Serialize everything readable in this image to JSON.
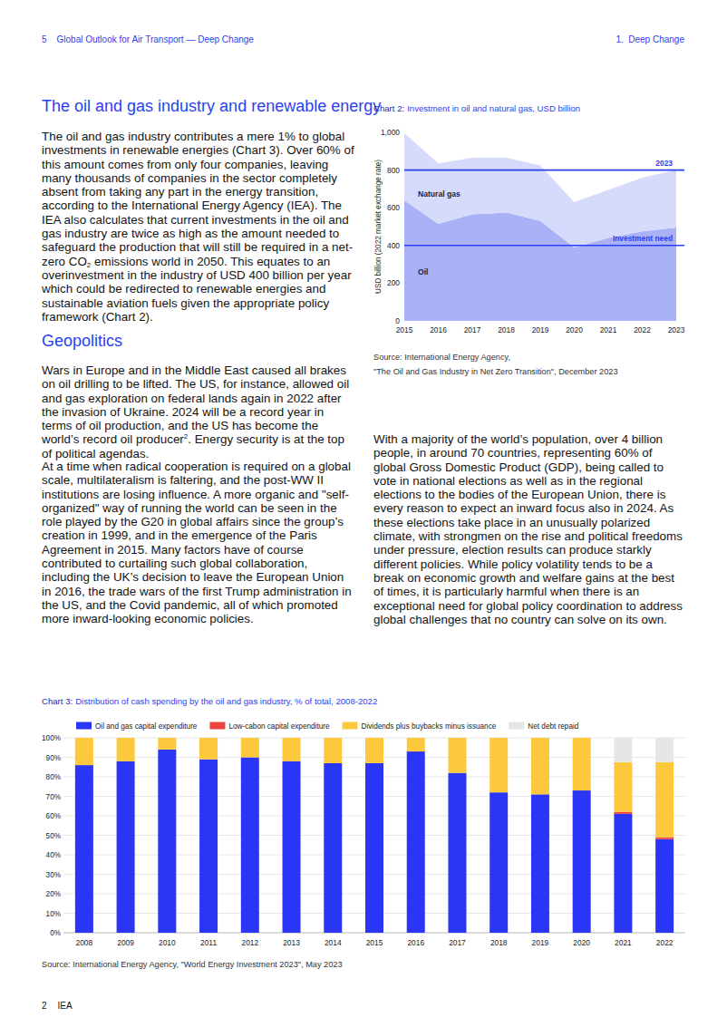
{
  "header": {
    "page": "5",
    "title": "Global Outlook for Air Transport — Deep Change",
    "section": "1.  Deep Change"
  },
  "sections": [
    {
      "heading": "The oil and gas industry and renewable energy",
      "paragraphs": [
        [
          "The oil and gas industry contributes a mere 1% to global investments in renewable energies (Chart 3). Over 60% of this amount comes from only four companies, leaving many thousands of companies in the sector completely absent from taking any part in the energy transition, according to the International Energy Agency (IEA). The IEA also calculates that current investments in the oil and gas industry are twice as high as the amount needed to safeguard the production that will still be required in a net-zero CO",
          {
            "sub": "2"
          },
          " emissions world in 2050. This equates to an overinvestment in the industry of USD 400 billion per year which could be redirected to renewable energies and sustainable aviation fuels given the appropriate policy framework (Chart 2)."
        ]
      ]
    },
    {
      "heading": "Geopolitics",
      "paragraphs": [
        [
          "Wars in Europe and in the Middle East caused all brakes on oil drilling to be lifted. The US, for instance, allowed oil and gas exploration on federal lands again in 2022 after the invasion of Ukraine. 2024 will be a record year in terms of oil production, and the US has become the world’s record oil producer",
          {
            "sup": "2"
          },
          ". Energy security is at the top of political agendas."
        ],
        [
          "At a time when radical cooperation is required on a global scale, multilateralism is faltering, and the post-WW II institutions are losing influence. A more organic and \"self-organized\" way of running the world can be seen in the role played by the G20 in global affairs since the group’s creation in 1999, and in the emergence of the Paris Agreement in 2015. Many factors have of course contributed to curtailing such global collaboration, including the UK’s decision to leave the European Union in 2016, the trade wars of the first Trump administration in the US, and the Covid pandemic, all of which promoted more inward-looking economic policies."
        ],
        [
          "With a majority of the world’s population, over 4 billion people, in around 70 countries, representing 60% of global Gross Domestic Product (GDP), being called to vote in national elections as well as in the regional elections to the bodies of the European Union, there is every reason to expect an inward focus also in 2024. As these elections take place in an unusually polarized climate, with strongmen on the rise and political freedoms under pressure, election results can produce starkly different policies. While policy volatility tends to be a break on economic growth and welfare gains at the best of times, it is particularly harmful when there is an exceptional need for global policy coordination to address global challenges that no country can solve on its own."
        ]
      ]
    }
  ],
  "footer": {
    "page": "2",
    "source": "IEA"
  },
  "chart_data": [
    {
      "type": "area",
      "stacked": true,
      "number": "Chart 2:",
      "title": "Investment in oil and natural gas, USD billion",
      "y_label": "USD billion (2022 market exchange rate)",
      "x": [
        2015,
        2016,
        2017,
        2018,
        2019,
        2020,
        2021,
        2022,
        2023
      ],
      "xlim": [
        2015,
        2023
      ],
      "xticks": [
        2015,
        2016,
        2017,
        2018,
        2019,
        2020,
        2021,
        2022,
        2023
      ],
      "ylim": [
        0,
        1000
      ],
      "yticks": [
        0,
        200,
        400,
        600,
        800,
        {
          "value": 1000,
          "label": "1,000"
        }
      ],
      "series": [
        {
          "name": "Oil",
          "color": "#a9b2f6",
          "values": [
            640,
            515,
            565,
            575,
            530,
            390,
            440,
            475,
            495
          ]
        },
        {
          "name": "Natural gas",
          "color": "#d6dafb",
          "values": [
            355,
            320,
            300,
            290,
            295,
            240,
            255,
            285,
            305
          ]
        }
      ],
      "reference_lines": [
        {
          "value": 800,
          "label": "2023"
        },
        {
          "value": 400,
          "label": "Investment need"
        }
      ],
      "source": [
        "Source: International Energy Agency,",
        "\"The Oil and Gas Industry in Net Zero Transition\", December 2023"
      ]
    },
    {
      "type": "bar",
      "stacked": true,
      "grid": true,
      "legend": "top",
      "number": "Chart 3:",
      "title": "Distribution of cash spending by the oil and gas industry, % of total, 2008-2022",
      "categories": [
        "2008",
        "2009",
        "2010",
        "2011",
        "2012",
        "2013",
        "2014",
        "2015",
        "2016",
        "2017",
        "2018",
        "2019",
        "2020",
        "2021",
        "2022"
      ],
      "ylim": [
        0,
        100
      ],
      "yticks": [
        {
          "value": 0,
          "label": "0%"
        },
        {
          "value": 10,
          "label": "10%"
        },
        {
          "value": 20,
          "label": "20%"
        },
        {
          "value": 30,
          "label": "30%"
        },
        {
          "value": 40,
          "label": "40%"
        },
        {
          "value": 50,
          "label": "50%"
        },
        {
          "value": 60,
          "label": "60%"
        },
        {
          "value": 70,
          "label": "70%"
        },
        {
          "value": 80,
          "label": "80%"
        },
        {
          "value": 90,
          "label": "90%"
        },
        {
          "value": 100,
          "label": "100%"
        }
      ],
      "series": [
        {
          "name": "Oil and gas capital expenditure",
          "color": "#2b35f5",
          "values": [
            86,
            88,
            94,
            89,
            90,
            88,
            87,
            87,
            93,
            82,
            72,
            71,
            73,
            61,
            48
          ]
        },
        {
          "name": "Low-cabon capital expenditure",
          "color": "#e8463b",
          "values": [
            0,
            0,
            0,
            0,
            0,
            0,
            0,
            0,
            0,
            0,
            0,
            0,
            0,
            1,
            1
          ]
        },
        {
          "name": "Dividends plus buybacks minus issuance",
          "color": "#fcc93c",
          "values": [
            14,
            12,
            6,
            11,
            10,
            12,
            13,
            13,
            7,
            18,
            28,
            29,
            27,
            25.5,
            38.5
          ]
        },
        {
          "name": "Net debt repaid",
          "color": "#e6e6e6",
          "values": [
            0,
            0,
            0,
            0,
            0,
            0,
            0,
            0,
            0,
            0,
            0,
            0,
            0,
            12.5,
            12.5
          ]
        }
      ],
      "source": "Source: International Energy Agency, \"World Energy Investment 2023\", May 2023"
    }
  ]
}
